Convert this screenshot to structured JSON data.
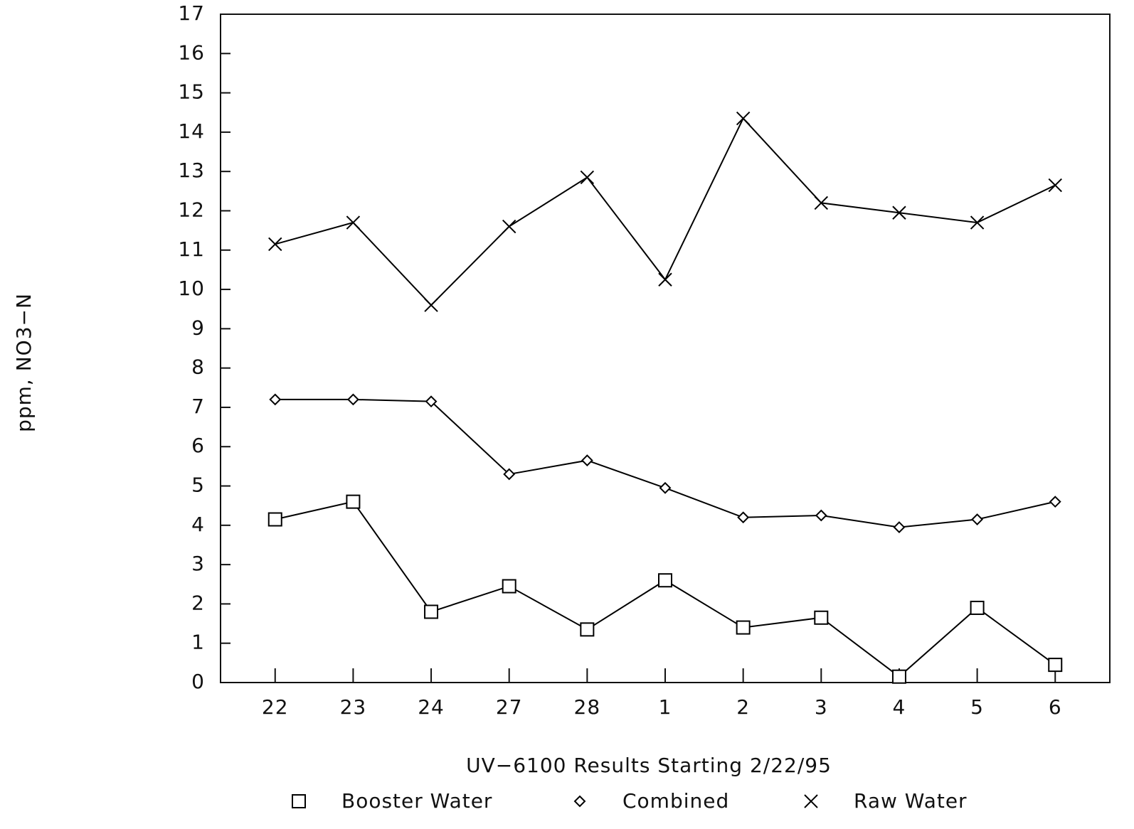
{
  "chart_data": {
    "type": "line",
    "x_label": "UV−6100 Results Starting 2/22/95",
    "y_label": "ppm, NO3−N",
    "categories": [
      "22",
      "23",
      "24",
      "27",
      "28",
      "1",
      "2",
      "3",
      "4",
      "5",
      "6"
    ],
    "series": [
      {
        "name": "Booster Water",
        "color": "#000000",
        "marker": "square",
        "values": [
          4.15,
          4.6,
          1.8,
          2.45,
          1.35,
          2.6,
          1.4,
          1.65,
          0.15,
          1.9,
          0.45
        ]
      },
      {
        "name": "Combined",
        "color": "#000000",
        "marker": "diamond",
        "values": [
          7.2,
          7.2,
          7.15,
          5.3,
          5.65,
          4.95,
          4.2,
          4.25,
          3.95,
          4.15,
          4.6
        ]
      },
      {
        "name": "Raw Water",
        "color": "#000000",
        "marker": "x",
        "values": [
          11.15,
          11.7,
          9.6,
          11.6,
          12.85,
          10.25,
          14.35,
          12.2,
          11.95,
          11.7,
          12.65
        ]
      }
    ],
    "ylim": [
      0,
      17
    ],
    "yticks": [
      0,
      1,
      2,
      3,
      4,
      5,
      6,
      7,
      8,
      9,
      10,
      11,
      12,
      13,
      14,
      15,
      16,
      17
    ],
    "grid": false,
    "legend": "bottom"
  }
}
